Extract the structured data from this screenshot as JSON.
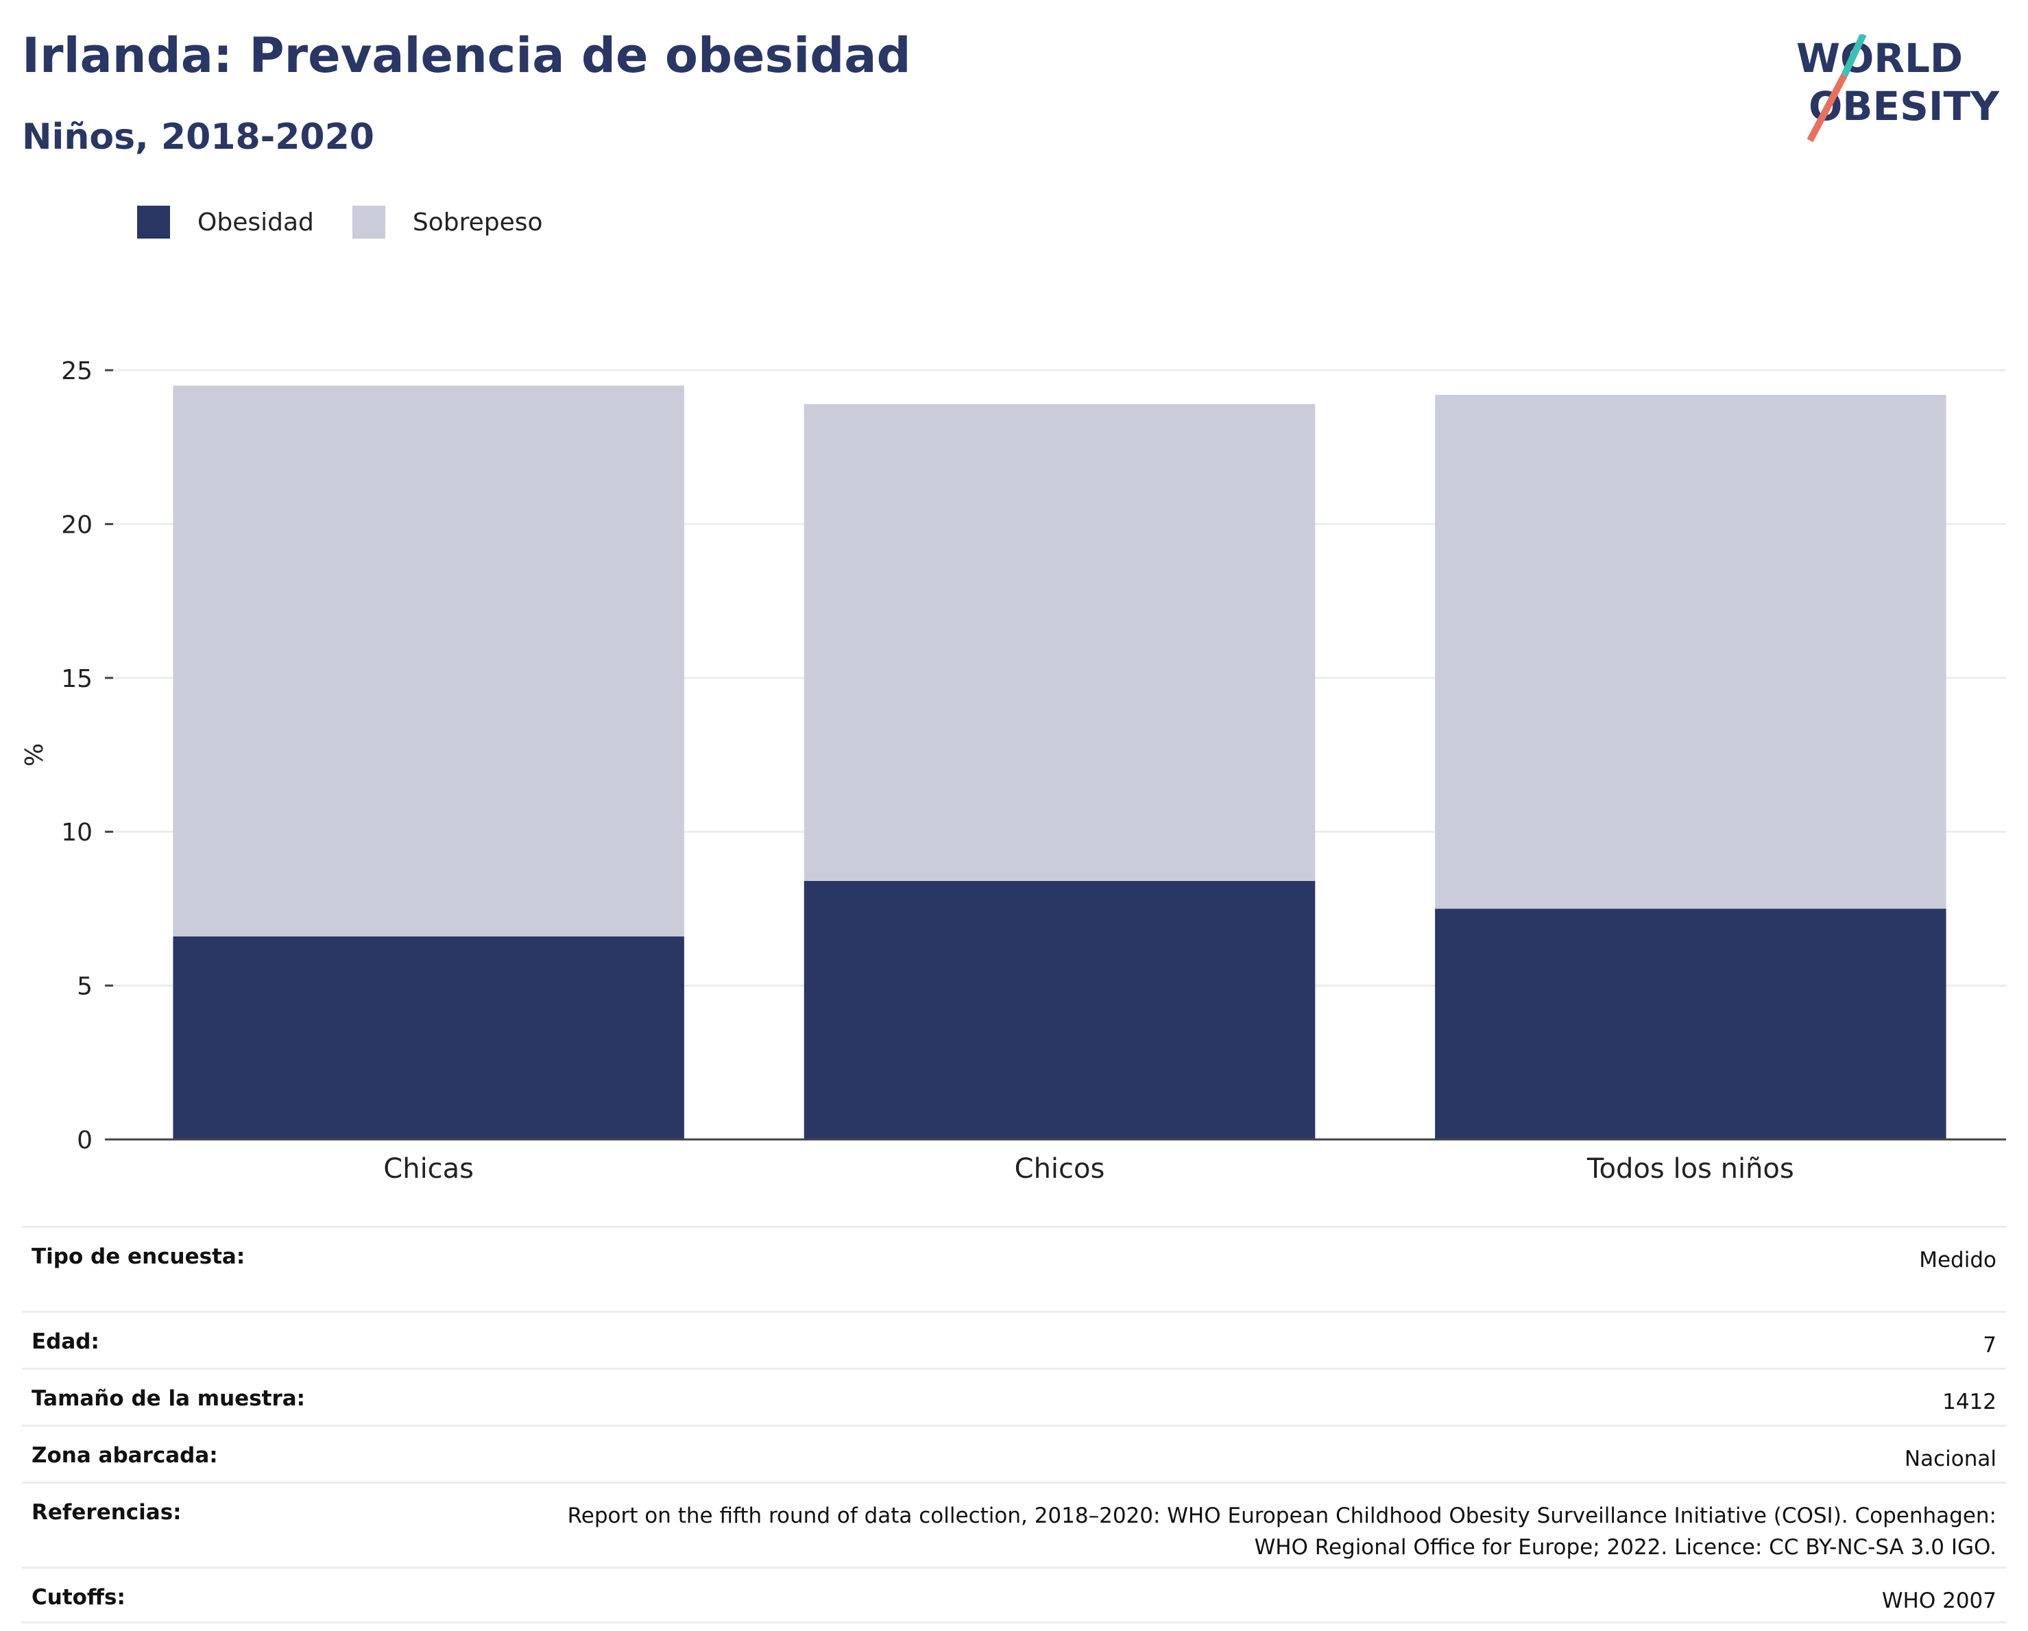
{
  "title": "Irlanda: Prevalencia de obesidad",
  "subtitle": "Niños, 2018-2020",
  "logo": {
    "line1": "WORLD",
    "line2": "OBESITY"
  },
  "legend": [
    {
      "label": "Obesidad",
      "color": "#2a3663"
    },
    {
      "label": "Sobrepeso",
      "color": "#cacdd9"
    }
  ],
  "chart_data": {
    "type": "bar",
    "stacked": true,
    "categories": [
      "Chicas",
      "Chicos",
      "Todos los niños"
    ],
    "series": [
      {
        "name": "Obesidad",
        "values": [
          6.6,
          8.4,
          7.5
        ],
        "color": "#2a3663"
      },
      {
        "name": "Sobrepeso",
        "values": [
          17.9,
          15.5,
          16.7
        ],
        "color": "#cacdd9"
      }
    ],
    "ylabel": "%",
    "ylim": [
      0,
      25
    ],
    "yticks": [
      0,
      5,
      10,
      15,
      20,
      25
    ],
    "grid": true,
    "legend_position": "top-left"
  },
  "meta": {
    "survey": {
      "label": "Tipo de encuesta:",
      "value": "Medido"
    },
    "age": {
      "label": "Edad:",
      "value": "7"
    },
    "sample": {
      "label": "Tamaño de la muestra:",
      "value": "1412"
    },
    "area": {
      "label": "Zona abarcada:",
      "value": "Nacional"
    },
    "refs": {
      "label": "Referencias:",
      "value_line1": "Report on the fifth round of data collection, 2018–2020: WHO European Childhood Obesity Surveillance Initiative (COSI). Copenhagen:",
      "value_line2": "WHO Regional Office for Europe; 2022. Licence: CC BY-NC-SA 3.0 IGO."
    },
    "cutoffs": {
      "label": "Cutoffs:",
      "value": "WHO 2007"
    }
  }
}
